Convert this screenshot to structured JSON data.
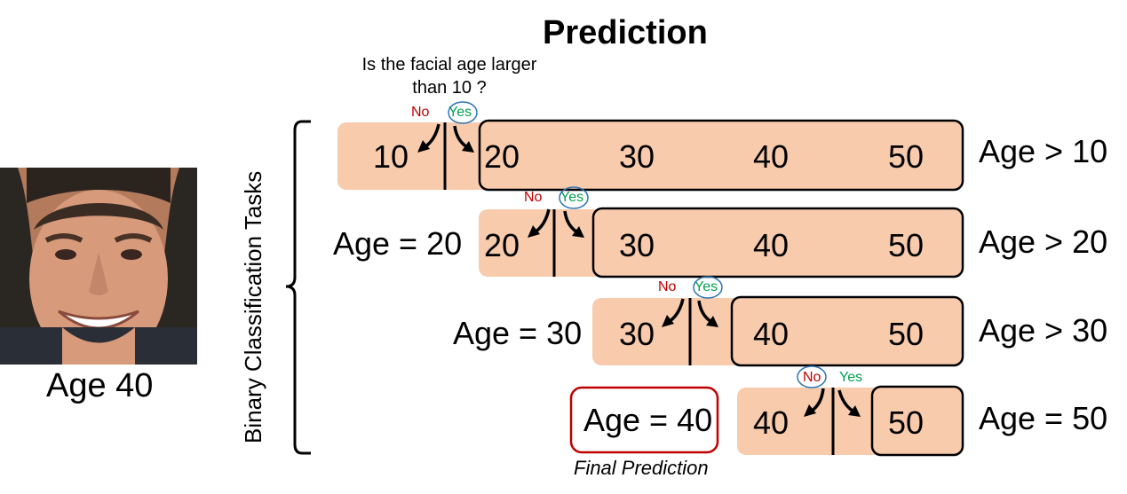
{
  "title": "Prediction",
  "question": "Is the facial age larger than 10 ?",
  "input_label": "Age 40",
  "task_group_label": "Binary Classification Tasks",
  "no_label": "No",
  "yes_label": "Yes",
  "final_caption": "Final Prediction",
  "colors": {
    "box_fill": "#f8cbad",
    "no_text": "#c00000",
    "yes_text": "#00a050",
    "circle": "#2e75b6",
    "final_border": "#c00000"
  },
  "rows": [
    {
      "left_value": "10",
      "right_values": [
        "20",
        "30",
        "40",
        "50"
      ],
      "right_label": "Age > 10",
      "left_result": "",
      "circled": "yes"
    },
    {
      "left_value": "20",
      "right_values": [
        "30",
        "40",
        "50"
      ],
      "right_label": "Age > 20",
      "left_result": "Age = 20",
      "circled": "yes"
    },
    {
      "left_value": "30",
      "right_values": [
        "40",
        "50"
      ],
      "right_label": "Age > 30",
      "left_result": "Age = 30",
      "circled": "yes"
    },
    {
      "left_value": "40",
      "right_values": [
        "50"
      ],
      "right_label": "Age = 50",
      "left_result": "Age = 40",
      "circled": "no"
    }
  ]
}
